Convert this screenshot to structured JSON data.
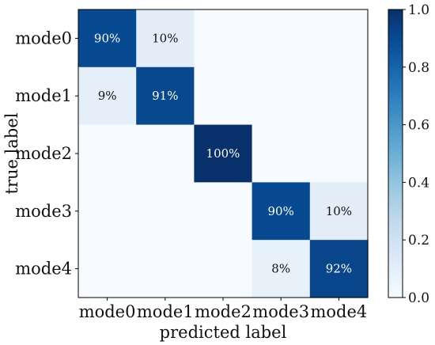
{
  "chart_data": {
    "type": "heatmap",
    "title": "",
    "xlabel": "predicted label",
    "ylabel": "true label",
    "x_categories": [
      "mode0",
      "mode1",
      "mode2",
      "mode3",
      "mode4"
    ],
    "y_categories": [
      "mode0",
      "mode1",
      "mode2",
      "mode3",
      "mode4"
    ],
    "values": [
      [
        0.9,
        0.1,
        0.0,
        0.0,
        0.0
      ],
      [
        0.09,
        0.91,
        0.0,
        0.0,
        0.0
      ],
      [
        0.0,
        0.0,
        1.0,
        0.0,
        0.0
      ],
      [
        0.0,
        0.0,
        0.0,
        0.9,
        0.1
      ],
      [
        0.0,
        0.0,
        0.0,
        0.08,
        0.92
      ]
    ],
    "cell_labels": [
      [
        "90%",
        "10%",
        "",
        "",
        ""
      ],
      [
        "9%",
        "91%",
        "",
        "",
        ""
      ],
      [
        "",
        "",
        "100%",
        "",
        ""
      ],
      [
        "",
        "",
        "",
        "90%",
        "10%"
      ],
      [
        "",
        "",
        "",
        "8%",
        "92%"
      ]
    ],
    "colormap": "Blues",
    "colorbar": {
      "range": [
        0.0,
        1.0
      ],
      "ticks": [
        0.0,
        0.2,
        0.4,
        0.6,
        0.8,
        1.0
      ],
      "tick_labels": [
        "0.0",
        "0.2",
        "0.4",
        "0.6",
        "0.8",
        "1.0"
      ]
    },
    "grid": false,
    "legend": "colorbar-right"
  }
}
